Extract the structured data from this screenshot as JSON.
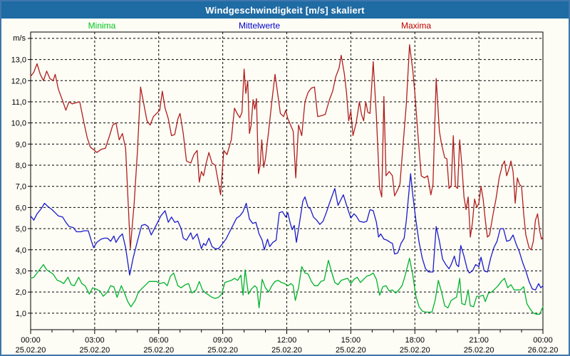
{
  "window": {
    "title": "Windgeschwindigkeit [m/s] skaliert"
  },
  "legend": {
    "items": [
      {
        "label": "Minima",
        "color": "#00c41e"
      },
      {
        "label": "Mittelwerte",
        "color": "#0000cc"
      },
      {
        "label": "Maxima",
        "color": "#c00000"
      }
    ]
  },
  "chart_data": {
    "type": "line",
    "title": "Windgeschwindigkeit [m/s] skaliert",
    "unit_label": "m/s",
    "xlabel": "",
    "ylabel": "m/s",
    "grid": "dashed",
    "legend_position": "top",
    "ylim": [
      0.22,
      14.3
    ],
    "xlim_hours": [
      0,
      24
    ],
    "x_minor_step_hours": 1,
    "y_ticks": [
      {
        "value": 1,
        "label": "1,0"
      },
      {
        "value": 2,
        "label": "2,0"
      },
      {
        "value": 3,
        "label": "3,0"
      },
      {
        "value": 4,
        "label": "4,0"
      },
      {
        "value": 5,
        "label": "5,0"
      },
      {
        "value": 6,
        "label": "6,0"
      },
      {
        "value": 7,
        "label": "7,0"
      },
      {
        "value": 8,
        "label": "8,0"
      },
      {
        "value": 9,
        "label": "9,0"
      },
      {
        "value": 10,
        "label": "10,0"
      },
      {
        "value": 11,
        "label": "11,0"
      },
      {
        "value": 12,
        "label": "12,0"
      },
      {
        "value": 13,
        "label": "13,0"
      },
      {
        "value": 14,
        "label": ""
      }
    ],
    "x_major_ticks": [
      {
        "hour": 0,
        "time": "00:00",
        "date": "25.02.20"
      },
      {
        "hour": 3,
        "time": "03:00",
        "date": "25.02.20"
      },
      {
        "hour": 6,
        "time": "06:00",
        "date": "25.02.20"
      },
      {
        "hour": 9,
        "time": "09:00",
        "date": "25.02.20"
      },
      {
        "hour": 12,
        "time": "12:00",
        "date": "25.02.20"
      },
      {
        "hour": 15,
        "time": "15:00",
        "date": "25.02.20"
      },
      {
        "hour": 18,
        "time": "18:00",
        "date": "25.02.20"
      },
      {
        "hour": 21,
        "time": "21:00",
        "date": "25.02.20"
      },
      {
        "hour": 24,
        "time": "00:00",
        "date": "26.02.20"
      }
    ],
    "series": [
      {
        "name": "Minima",
        "color": "#00b22d",
        "x_hours": [
          0,
          0.15,
          0.3,
          0.45,
          0.6,
          0.75,
          0.9,
          1.05,
          1.25,
          1.4,
          1.55,
          1.75,
          1.9,
          2.05,
          2.25,
          2.4,
          2.55,
          2.75,
          2.9,
          3.05,
          3.25,
          3.4,
          3.6,
          3.75,
          3.9,
          4.05,
          4.25,
          4.4,
          4.55,
          4.7,
          4.9,
          5.05,
          5.25,
          5.4,
          5.55,
          5.75,
          5.9,
          6.05,
          6.25,
          6.4,
          6.55,
          6.7,
          6.9,
          7.05,
          7.25,
          7.4,
          7.55,
          7.75,
          7.9,
          8.05,
          8.2,
          8.35,
          8.5,
          8.65,
          8.8,
          8.95,
          9.1,
          9.25,
          9.4,
          9.55,
          9.7,
          9.85,
          9.95,
          10.05,
          10.2,
          10.35,
          10.5,
          10.6,
          10.7,
          10.85,
          11,
          11.15,
          11.3,
          11.45,
          11.6,
          11.75,
          11.9,
          12.05,
          12.2,
          12.3,
          12.4,
          12.55,
          12.7,
          12.85,
          13,
          13.15,
          13.3,
          13.45,
          13.6,
          13.75,
          13.95,
          14.1,
          14.25,
          14.4,
          14.55,
          14.7,
          14.85,
          15,
          15.15,
          15.3,
          15.45,
          15.6,
          15.75,
          15.9,
          16.05,
          16.2,
          16.35,
          16.5,
          16.65,
          16.8,
          16.95,
          17.1,
          17.25,
          17.4,
          17.55,
          17.75,
          17.9,
          18.05,
          18.2,
          18.35,
          18.5,
          18.65,
          18.8,
          18.95,
          19.1,
          19.25,
          19.4,
          19.55,
          19.7,
          19.85,
          19.95,
          20.1,
          20.2,
          20.35,
          20.5,
          20.6,
          20.75,
          20.9,
          21.05,
          21.2,
          21.3,
          21.45,
          21.6,
          21.75,
          21.9,
          22.05,
          22.2,
          22.35,
          22.5,
          22.65,
          22.8,
          22.95,
          23.1,
          23.25,
          23.4,
          23.55,
          23.7,
          23.85,
          24
        ],
        "values": [
          2.65,
          2.7,
          2.9,
          3.1,
          3.3,
          3.05,
          2.95,
          2.85,
          2.55,
          2.5,
          2.4,
          2.7,
          2.35,
          2.3,
          2.7,
          2.4,
          2.3,
          1.9,
          2.2,
          2.15,
          2.05,
          1.8,
          2,
          2.3,
          2.25,
          1.75,
          2.3,
          1.95,
          1.55,
          1.3,
          1.6,
          2,
          2.2,
          2.35,
          2.5,
          2.5,
          2.5,
          2.4,
          2.45,
          2.3,
          2.75,
          2.9,
          2.3,
          2.2,
          2.35,
          2.4,
          1.95,
          2.1,
          2.5,
          2.1,
          1.95,
          1.85,
          1.75,
          1.7,
          1.75,
          1.9,
          2.45,
          2.5,
          2.55,
          2.65,
          2.55,
          2.8,
          1.85,
          3.05,
          1.9,
          2.15,
          2.3,
          2.2,
          1.25,
          2.6,
          2.2,
          2,
          2.3,
          2.5,
          2.55,
          2.45,
          2.4,
          2.3,
          2.4,
          2.3,
          1.6,
          2.2,
          3.2,
          2.9,
          2.85,
          2.5,
          2.3,
          2.3,
          2.5,
          2.55,
          3.5,
          2.95,
          2.45,
          2.35,
          2.55,
          2.6,
          2.65,
          2.4,
          2.6,
          2.7,
          2.45,
          2.6,
          2.75,
          2.8,
          2.9,
          2.6,
          1.85,
          2.25,
          2.3,
          2.05,
          2.1,
          1.95,
          2.1,
          2.3,
          2.8,
          3.6,
          2.8,
          1.8,
          1.3,
          1.1,
          1.05,
          1.05,
          1.05,
          1.6,
          2.55,
          2,
          1.35,
          1.25,
          1.6,
          1.7,
          1.75,
          2.65,
          1.45,
          1.4,
          2.1,
          1.35,
          1.3,
          1.8,
          1.8,
          1.85,
          1.55,
          1.95,
          2,
          2.15,
          2.3,
          2.5,
          2.65,
          2.2,
          2.35,
          2.1,
          2.1,
          2.1,
          2.25,
          1.45,
          1.2,
          1,
          0.95,
          0.95,
          1.3
        ]
      },
      {
        "name": "Mittelwerte",
        "color": "#1a1acc",
        "x_hours": [
          0,
          0.15,
          0.3,
          0.5,
          0.65,
          0.8,
          1,
          1.15,
          1.3,
          1.5,
          1.65,
          1.8,
          2,
          2.15,
          2.35,
          2.5,
          2.7,
          2.85,
          2.95,
          3.1,
          3.3,
          3.45,
          3.6,
          3.75,
          3.9,
          4,
          4.15,
          4.3,
          4.45,
          4.64,
          4.8,
          5,
          5.2,
          5.35,
          5.5,
          5.65,
          5.8,
          5.95,
          6.1,
          6.3,
          6.45,
          6.6,
          6.75,
          6.9,
          7.05,
          7.15,
          7.3,
          7.5,
          7.6,
          7.8,
          7.9,
          8,
          8.1,
          8.2,
          8.35,
          8.5,
          8.65,
          8.8,
          9,
          9.15,
          9.3,
          9.5,
          9.65,
          9.8,
          9.95,
          10.1,
          10.25,
          10.4,
          10.55,
          10.7,
          10.85,
          10.95,
          11.1,
          11.2,
          11.35,
          11.5,
          11.65,
          11.8,
          11.95,
          12.05,
          12.15,
          12.25,
          12.35,
          12.45,
          12.6,
          12.75,
          12.85,
          13,
          13.1,
          13.25,
          13.4,
          13.55,
          13.7,
          13.85,
          14,
          14.25,
          14.4,
          14.55,
          14.65,
          14.85,
          15,
          15.15,
          15.25,
          15.4,
          15.6,
          15.75,
          15.9,
          16.05,
          16.2,
          16.3,
          16.4,
          16.55,
          16.7,
          16.85,
          16.95,
          17.05,
          17.2,
          17.35,
          17.5,
          17.6,
          17.7,
          17.8,
          17.9,
          18.05,
          18.2,
          18.35,
          18.5,
          18.65,
          18.85,
          19,
          19.15,
          19.3,
          19.45,
          19.6,
          19.7,
          19.85,
          19.95,
          20.05,
          20.15,
          20.3,
          20.45,
          20.55,
          20.7,
          20.85,
          21,
          21.1,
          21.25,
          21.4,
          21.55,
          21.7,
          21.85,
          22,
          22.15,
          22.3,
          22.45,
          22.6,
          22.75,
          22.9,
          23.05,
          23.2,
          23.35,
          23.5,
          23.65,
          23.8,
          23.9,
          24
        ],
        "values": [
          5.6,
          5.4,
          5.7,
          5.95,
          6.2,
          6.05,
          5.9,
          5.75,
          5.6,
          5.55,
          5.3,
          5.1,
          5.05,
          4.85,
          4.85,
          4.9,
          4.9,
          4.4,
          4.1,
          4.35,
          4.5,
          4.55,
          4.55,
          4.4,
          4.65,
          4.35,
          4.6,
          4.75,
          4.1,
          2.8,
          3.6,
          4.4,
          5.15,
          5.2,
          5.1,
          4.7,
          5,
          5.3,
          5.6,
          5.85,
          5.3,
          5.55,
          5.3,
          5.35,
          5,
          4.55,
          4.45,
          4.8,
          4.5,
          4.75,
          4.4,
          4.05,
          4.3,
          4.2,
          4.55,
          4.15,
          4.05,
          4.05,
          4.3,
          4.5,
          4.8,
          5.2,
          5.5,
          5.6,
          5.8,
          6.2,
          5.45,
          5.25,
          5.3,
          4.75,
          4.45,
          4,
          4.5,
          4.15,
          4.35,
          4.45,
          5.75,
          5.8,
          5.55,
          5.75,
          5.3,
          4.95,
          5.15,
          4.35,
          5.3,
          6.3,
          6.5,
          6,
          5.95,
          5.55,
          5.4,
          5.2,
          5.35,
          5.75,
          6.2,
          6.9,
          6.1,
          6.4,
          6.6,
          5.95,
          5.5,
          5.7,
          5.6,
          5.35,
          5.3,
          5.35,
          5.9,
          5.85,
          5.3,
          4.6,
          4.75,
          4.5,
          4.45,
          4.35,
          4.3,
          3.8,
          3.85,
          4.3,
          4.55,
          5.4,
          6.5,
          7.6,
          6.6,
          5.4,
          4.35,
          3.6,
          3.1,
          2.95,
          2.95,
          5.1,
          4.4,
          3.55,
          3.3,
          3.1,
          3.3,
          3.7,
          3.3,
          3.2,
          4.2,
          3.7,
          3.1,
          2.9,
          3,
          3.3,
          3.2,
          3.65,
          3,
          2.95,
          3.6,
          4.1,
          4.4,
          5,
          5,
          4.4,
          4.45,
          4.7,
          4.25,
          3.9,
          3.4,
          3,
          2.5,
          2.15,
          2.1,
          2.4,
          2.2,
          2.3
        ]
      },
      {
        "name": "Maxima",
        "color": "#b01e1e",
        "x_hours": [
          0,
          0.15,
          0.3,
          0.45,
          0.6,
          0.75,
          0.9,
          1.05,
          1.15,
          1.3,
          1.5,
          1.65,
          1.8,
          1.95,
          2.1,
          2.3,
          2.5,
          2.65,
          2.8,
          3,
          3.1,
          3.3,
          3.5,
          3.7,
          3.85,
          4,
          4.15,
          4.3,
          4.45,
          4.67,
          4.85,
          5,
          5.15,
          5.3,
          5.45,
          5.6,
          5.75,
          5.9,
          6.05,
          6.17,
          6.3,
          6.45,
          6.6,
          6.75,
          6.9,
          7,
          7.15,
          7.3,
          7.5,
          7.65,
          7.8,
          7.9,
          8,
          8.1,
          8.2,
          8.35,
          8.5,
          8.65,
          8.9,
          9.05,
          9.2,
          9.4,
          9.55,
          9.7,
          9.8,
          9.9,
          10,
          10.08,
          10.17,
          10.25,
          10.33,
          10.42,
          10.5,
          10.58,
          10.67,
          10.75,
          10.83,
          10.92,
          11,
          11.15,
          11.3,
          11.45,
          11.6,
          11.7,
          11.85,
          11.95,
          12.05,
          12.2,
          12.3,
          12.42,
          12.55,
          12.7,
          12.85,
          13,
          13.15,
          13.3,
          13.45,
          13.65,
          13.8,
          14,
          14.15,
          14.3,
          14.45,
          14.55,
          14.7,
          14.8,
          14.9,
          15,
          15.1,
          15.25,
          15.4,
          15.5,
          15.6,
          15.7,
          15.8,
          15.9,
          16.05,
          16.2,
          16.35,
          16.45,
          16.55,
          16.65,
          16.8,
          16.95,
          17.05,
          17.2,
          17.3,
          17.45,
          17.6,
          17.75,
          17.9,
          18,
          18.15,
          18.3,
          18.45,
          18.6,
          18.75,
          18.85,
          19,
          19.15,
          19.25,
          19.4,
          19.5,
          19.6,
          19.7,
          19.8,
          19.9,
          20,
          20.1,
          20.2,
          20.3,
          20.4,
          20.5,
          20.6,
          20.7,
          20.8,
          20.9,
          21,
          21.1,
          21.2,
          21.3,
          21.4,
          21.5,
          21.65,
          21.8,
          21.95,
          22.1,
          22.2,
          22.3,
          22.4,
          22.5,
          22.6,
          22.7,
          22.8,
          22.9,
          23,
          23.1,
          23.2,
          23.35,
          23.45,
          23.55,
          23.65,
          23.75,
          23.85,
          23.93,
          24
        ],
        "values": [
          12.2,
          12.4,
          12.8,
          12.3,
          12,
          12.45,
          12.1,
          12,
          12.3,
          11.6,
          11.05,
          10.6,
          11,
          10.9,
          10.95,
          11,
          10,
          9.3,
          8.85,
          8.7,
          8.6,
          8.75,
          8.8,
          9.4,
          9.9,
          10,
          9.2,
          9.5,
          8.8,
          4.05,
          6.2,
          8.6,
          11.7,
          10.9,
          10.1,
          9.9,
          10.3,
          10.45,
          10.6,
          11.5,
          10.7,
          10.2,
          9.4,
          9.45,
          10.2,
          10.45,
          9.5,
          8.2,
          8.1,
          8.5,
          8.7,
          7.2,
          7.7,
          7.5,
          8,
          8.6,
          8.1,
          8,
          6.6,
          8.7,
          8.5,
          9.2,
          10.7,
          10.4,
          10.25,
          10.5,
          12.55,
          11.4,
          12,
          9.5,
          9.9,
          11.1,
          10.65,
          11.15,
          7.6,
          8,
          9.2,
          7.9,
          8.3,
          9.6,
          11,
          12.3,
          11.2,
          10.45,
          10.3,
          10.6,
          10.2,
          9.85,
          9.6,
          7.4,
          9.9,
          9.4,
          11,
          11.45,
          11.65,
          11.7,
          10.3,
          10.35,
          10.4,
          11.1,
          11.5,
          12.2,
          12.6,
          13.2,
          12.3,
          11.4,
          10.1,
          10.55,
          9.4,
          10,
          11,
          10.4,
          10.1,
          11,
          10.5,
          10.45,
          12.9,
          10.3,
          6.9,
          6.5,
          11.25,
          7.5,
          7.7,
          7.5,
          6.55,
          6.85,
          7.1,
          9,
          10.9,
          13.7,
          12.5,
          11.4,
          9.4,
          7.5,
          7.4,
          7.5,
          6.6,
          7.1,
          12.1,
          9.6,
          9,
          8.35,
          8.3,
          6.9,
          7,
          9.4,
          7,
          6.9,
          9.2,
          8,
          6.5,
          5.9,
          6.5,
          4.6,
          5.3,
          6.4,
          6,
          6.2,
          7,
          6.4,
          5.4,
          4.6,
          4.7,
          5.6,
          6.4,
          7.4,
          8,
          8.2,
          7.5,
          7.8,
          8.2,
          7.7,
          6.2,
          7.4,
          7.1,
          7,
          5.7,
          4.7,
          4.1,
          4,
          4.4,
          5.4,
          5.7,
          4.9,
          4.5,
          4.6
        ]
      }
    ]
  }
}
